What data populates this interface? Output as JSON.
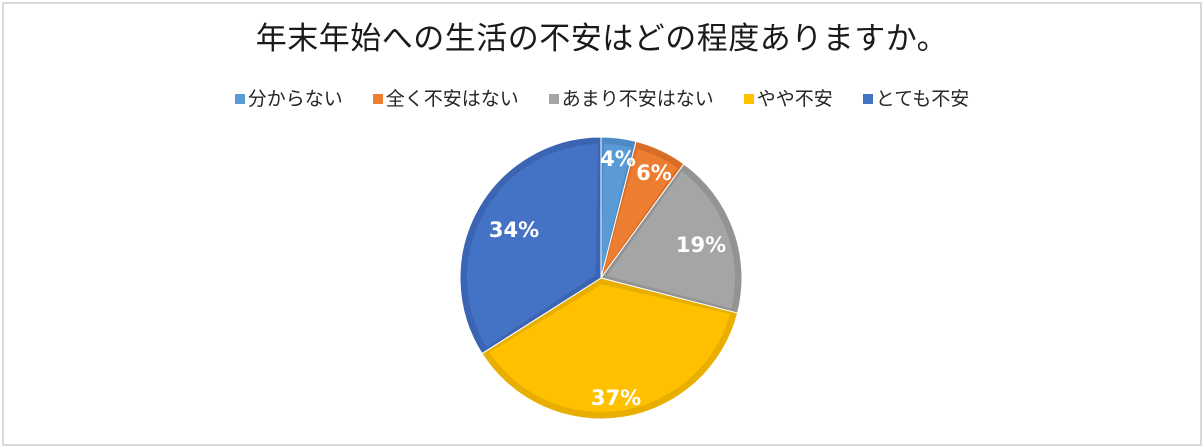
{
  "chart_data": {
    "type": "pie",
    "title": "年末年始への生活の不安はどの程度ありますか。",
    "categories": [
      "分からない",
      "全く不安はない",
      "あまり不安はない",
      "やや不安",
      "とても不安"
    ],
    "values": [
      4,
      6,
      19,
      37,
      34
    ],
    "value_labels": [
      "4%",
      "6%",
      "19%",
      "37%",
      "34%"
    ],
    "colors": [
      "#5b9bd5",
      "#ed7d31",
      "#a5a5a5",
      "#ffc000",
      "#4472c4"
    ],
    "border_colors": [
      "#4d8ac4",
      "#d86d25",
      "#939393",
      "#e8ae00",
      "#3b65b3"
    ],
    "legend_position": "top",
    "start_angle_deg": 0,
    "direction": "clockwise",
    "unit": "%"
  },
  "title": "年末年始への生活の不安はどの程度ありますか。",
  "legend": [
    {
      "label": "分からない",
      "color": "#5b9bd5"
    },
    {
      "label": "全く不安はない",
      "color": "#ed7d31"
    },
    {
      "label": "あまり不安はない",
      "color": "#a5a5a5"
    },
    {
      "label": "やや不安",
      "color": "#ffc000"
    },
    {
      "label": "とても不安",
      "color": "#4472c4"
    }
  ],
  "labels": {
    "s0": "4%",
    "s1": "6%",
    "s2": "19%",
    "s3": "37%",
    "s4": "34%"
  }
}
